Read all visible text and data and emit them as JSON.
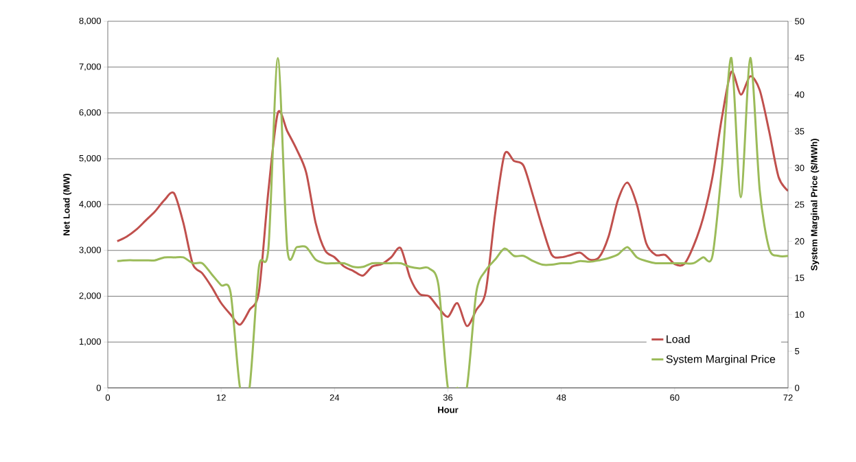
{
  "chart_data": {
    "type": "line",
    "xlabel": "Hour",
    "ylabel": "Net Load (MW)",
    "y2label": "System Marginal Price ($/MWh)",
    "x": [
      1,
      2,
      3,
      4,
      5,
      6,
      7,
      8,
      9,
      10,
      11,
      12,
      13,
      14,
      15,
      16,
      17,
      18,
      19,
      20,
      21,
      22,
      23,
      24,
      25,
      26,
      27,
      28,
      29,
      30,
      31,
      32,
      33,
      34,
      35,
      36,
      37,
      38,
      39,
      40,
      41,
      42,
      43,
      44,
      45,
      46,
      47,
      48,
      49,
      50,
      51,
      52,
      53,
      54,
      55,
      56,
      57,
      58,
      59,
      60,
      61,
      62,
      63,
      64,
      65,
      66,
      67,
      68,
      69,
      70,
      71,
      72
    ],
    "series": [
      {
        "name": "Load",
        "color": "#c0504d",
        "values": [
          3200,
          3300,
          3450,
          3650,
          3850,
          4100,
          4250,
          3600,
          2700,
          2500,
          2200,
          1850,
          1600,
          1380,
          1700,
          2100,
          4300,
          6000,
          5600,
          5200,
          4700,
          3600,
          3000,
          2850,
          2650,
          2550,
          2450,
          2650,
          2700,
          2850,
          3050,
          2400,
          2050,
          2000,
          1750,
          1550,
          1850,
          1350,
          1700,
          2100,
          3800,
          5100,
          4950,
          4850,
          4200,
          3500,
          2900,
          2850,
          2900,
          2950,
          2800,
          2850,
          3300,
          4100,
          4480,
          4000,
          3150,
          2900,
          2900,
          2700,
          2700,
          3100,
          3700,
          4600,
          5900,
          6900,
          6400,
          6800,
          6500,
          5600,
          4600,
          4300
        ]
      },
      {
        "name": "System Marginal Price",
        "color": "#9bbb59",
        "axis": "y2",
        "values": [
          17.3,
          17.4,
          17.4,
          17.4,
          17.4,
          17.8,
          17.8,
          17.8,
          17.0,
          17.0,
          15.5,
          14.0,
          13.0,
          0,
          0,
          16.5,
          19,
          45,
          19,
          19.2,
          19.2,
          17.5,
          17.0,
          17.0,
          17.0,
          16.5,
          16.5,
          17.0,
          17.0,
          17.0,
          17.0,
          16.5,
          16.3,
          16.3,
          14,
          0,
          0,
          0,
          13,
          16,
          17.5,
          19,
          18,
          18,
          17.3,
          16.8,
          16.8,
          17,
          17,
          17.3,
          17.2,
          17.4,
          17.7,
          18.2,
          19.2,
          17.8,
          17.3,
          17,
          17,
          17,
          17,
          17,
          17.8,
          18,
          30,
          45,
          26,
          45,
          27,
          19,
          18,
          18
        ]
      }
    ],
    "xlim": [
      0,
      72
    ],
    "xticks": [
      0,
      12,
      24,
      36,
      48,
      60,
      72
    ],
    "ylim": [
      0,
      8000
    ],
    "yticks": [
      {
        "value": 0,
        "label": "0"
      },
      {
        "value": 1000,
        "label": "1,000"
      },
      {
        "value": 2000,
        "label": "2,000"
      },
      {
        "value": 3000,
        "label": "3,000"
      },
      {
        "value": 4000,
        "label": "4,000"
      },
      {
        "value": 5000,
        "label": "5,000"
      },
      {
        "value": 6000,
        "label": "6,000"
      },
      {
        "value": 7000,
        "label": "7,000"
      },
      {
        "value": 8000,
        "label": "8,000"
      }
    ],
    "y2lim": [
      0,
      50
    ],
    "y2ticks": [
      0,
      5,
      10,
      15,
      20,
      25,
      30,
      35,
      40,
      45,
      50
    ],
    "grid": "y",
    "legend": "bottom right",
    "line_style": "solid",
    "marker": "none"
  }
}
